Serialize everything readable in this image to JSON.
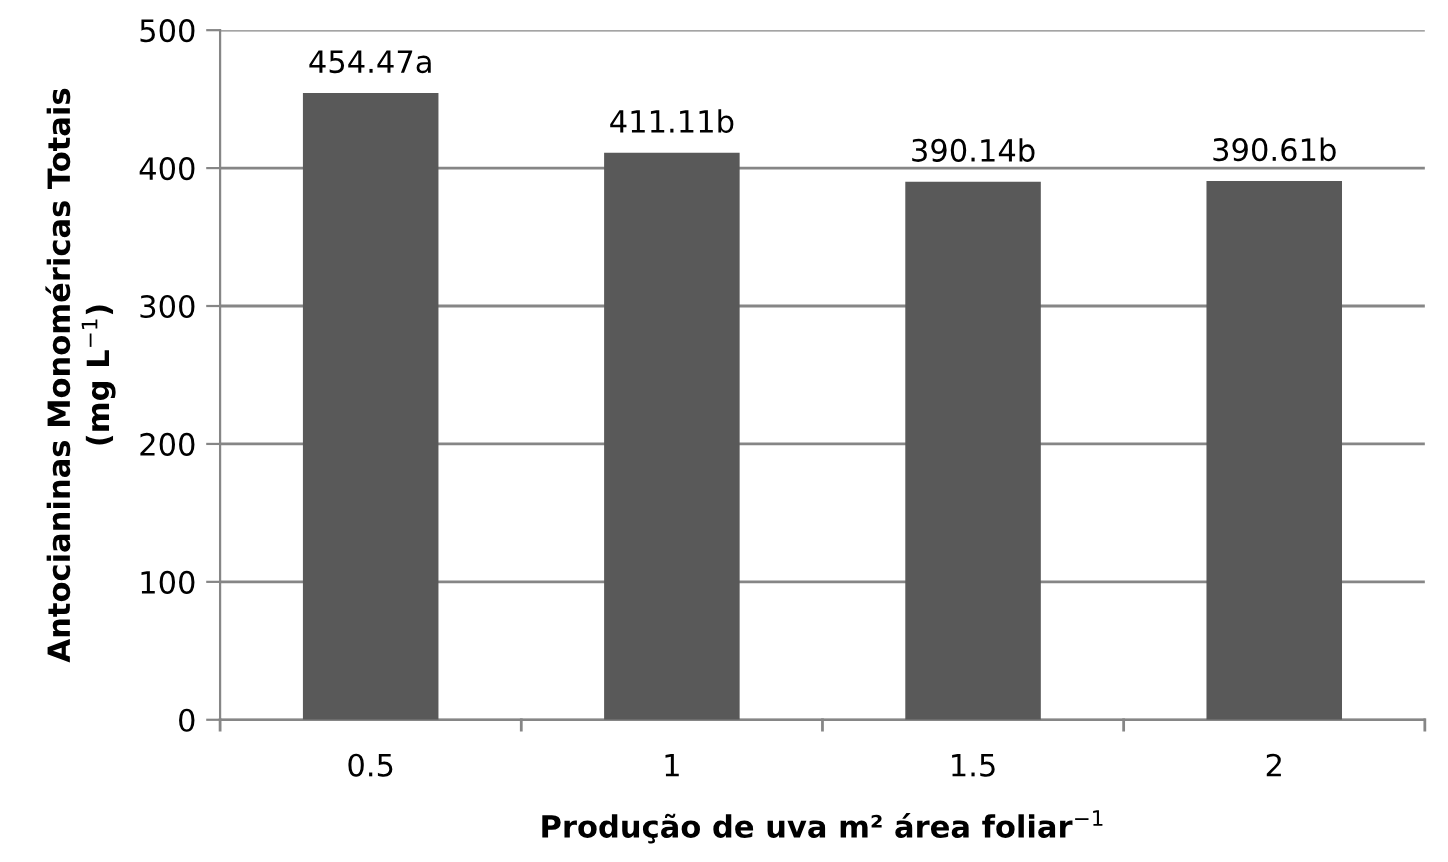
{
  "chart_data": {
    "type": "bar",
    "xlabel": "Produção de uva m² área foliar$^{−1}$",
    "ylabel": "Antocianinas Monoméricas Totais\n(mg L$^{−1}$)",
    "categories": [
      "0.5",
      "1",
      "1.5",
      "2"
    ],
    "values": [
      454.47,
      411.11,
      390.14,
      390.61
    ],
    "value_labels": [
      "454.47a",
      "411.11b",
      "390.14b",
      "390.61b"
    ],
    "color": "#595959",
    "ylim": [
      0,
      500
    ],
    "yticks": [
      0,
      100,
      200,
      300,
      400,
      500
    ],
    "grid": "y",
    "legend": false
  }
}
